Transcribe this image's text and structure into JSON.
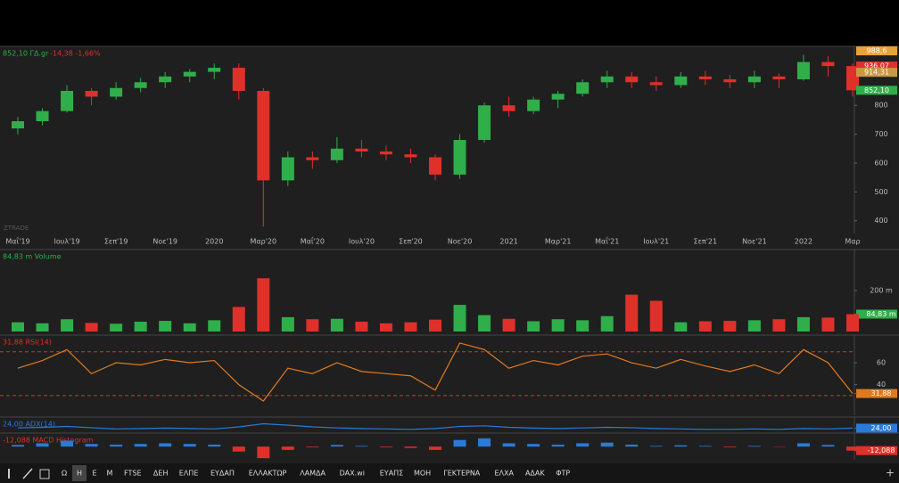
{
  "chart_data": [
    {
      "type": "candlestick",
      "title": "852,10 ΓΔ.gr",
      "subtitle": "-14,38 -1,66%",
      "watermark": "ZTRADE",
      "categories": [
        "Μαΐ'19",
        null,
        "Ιουλ'19",
        null,
        "Σεπ'19",
        null,
        "Νοε'19",
        null,
        "2020",
        null,
        "Μαρ'20",
        null,
        "Μαΐ'20",
        null,
        "Ιουλ'20",
        null,
        "Σεπ'20",
        null,
        "Νοε'20",
        null,
        "2021",
        null,
        "Μαρ'21",
        null,
        "Μαΐ'21",
        null,
        "Ιουλ'21",
        null,
        "Σεπ'21",
        null,
        "Νοε'21",
        null,
        "2022",
        null,
        "Μαρ"
      ],
      "open": [
        720,
        745,
        780,
        850,
        830,
        860,
        880,
        900,
        916,
        930,
        850,
        540,
        620,
        610,
        650,
        640,
        630,
        620,
        560,
        680,
        800,
        780,
        820,
        840,
        880,
        900,
        880,
        870,
        900,
        890,
        880,
        900,
        890,
        950,
        936
      ],
      "high": [
        760,
        790,
        870,
        860,
        880,
        895,
        915,
        925,
        945,
        945,
        860,
        640,
        640,
        690,
        680,
        660,
        650,
        630,
        700,
        810,
        830,
        830,
        850,
        890,
        920,
        915,
        900,
        915,
        920,
        905,
        920,
        910,
        975,
        970,
        945
      ],
      "low": [
        700,
        730,
        775,
        800,
        820,
        845,
        860,
        880,
        890,
        820,
        380,
        520,
        580,
        600,
        620,
        610,
        600,
        540,
        545,
        670,
        760,
        770,
        790,
        830,
        860,
        860,
        850,
        860,
        870,
        860,
        860,
        860,
        885,
        900,
        830
      ],
      "close": [
        745,
        780,
        850,
        830,
        860,
        880,
        900,
        916,
        930,
        850,
        540,
        620,
        610,
        650,
        640,
        630,
        620,
        560,
        680,
        800,
        780,
        820,
        840,
        880,
        900,
        880,
        870,
        900,
        890,
        880,
        900,
        890,
        950,
        936,
        852.1
      ],
      "up_color": "#2fae4a",
      "down_color": "#e0302a",
      "ylim": [
        356,
        992
      ],
      "yticks": [
        400,
        500,
        600,
        700,
        800
      ],
      "markers": [
        {
          "value": 988.6,
          "label": "988,6",
          "color": "#e8a33a"
        },
        {
          "value": 936.07,
          "label": "936,07",
          "color": "#e03030"
        },
        {
          "value": 914.31,
          "label": "914,31",
          "color": "#c89a40"
        },
        {
          "value": 852.1,
          "label": "852,10",
          "color": "#2fae4a"
        }
      ]
    },
    {
      "type": "volume",
      "title": "84,83 m Volume",
      "values": [
        45,
        40,
        60,
        42,
        38,
        48,
        52,
        40,
        55,
        120,
        260,
        70,
        60,
        62,
        48,
        40,
        45,
        58,
        130,
        80,
        62,
        50,
        60,
        55,
        75,
        180,
        150,
        45,
        50,
        52,
        55,
        60,
        70,
        68,
        84.83
      ],
      "ylim": [
        0,
        383
      ],
      "yticks": [
        {
          "value": 200,
          "label": "200 m"
        },
        {
          "value": 84.83,
          "label": "84,83 m"
        }
      ]
    },
    {
      "type": "line",
      "title": "31,88 RSI(14)",
      "color": "#e07a20",
      "values": [
        55,
        62,
        72,
        50,
        60,
        58,
        63,
        60,
        62,
        40,
        25,
        55,
        50,
        60,
        52,
        50,
        48,
        35,
        78,
        72,
        55,
        62,
        58,
        66,
        68,
        60,
        55,
        63,
        57,
        52,
        58,
        50,
        72,
        60,
        31.88
      ],
      "levels": [
        30,
        70
      ],
      "ylim": [
        12,
        82
      ],
      "yticks": [
        40,
        60,
        {
          "value": 31.88,
          "label": "31,88"
        }
      ]
    },
    {
      "type": "line",
      "title": "24,00 ADX(14)",
      "color": "#2a7ad8",
      "values": [
        25,
        28,
        32,
        26,
        20,
        22,
        24,
        22,
        20,
        30,
        45,
        38,
        30,
        25,
        22,
        20,
        18,
        22,
        32,
        35,
        28,
        24,
        22,
        25,
        28,
        26,
        22,
        20,
        18,
        18,
        20,
        18,
        22,
        20,
        24
      ],
      "ylim": [
        0,
        60
      ],
      "yticks": [
        {
          "value": 24,
          "label": "24,00"
        }
      ]
    },
    {
      "type": "histogram",
      "title": "-12,088 MACD Histogram",
      "up_color": "#2a7ad8",
      "down_color": "#e0302a",
      "values": [
        5,
        10,
        18,
        8,
        6,
        8,
        10,
        8,
        6,
        -15,
        -35,
        -10,
        -2,
        5,
        2,
        -2,
        -4,
        -10,
        20,
        25,
        10,
        8,
        6,
        10,
        12,
        6,
        2,
        4,
        2,
        -2,
        2,
        -1,
        10,
        5,
        -12.088
      ],
      "ylim": [
        -40,
        30
      ],
      "yticks": [
        {
          "value": -12.088,
          "label": "-12,088"
        }
      ]
    }
  ],
  "toolbar": {
    "items": [
      "Ω",
      "H",
      "E",
      "M",
      "FTSE",
      "ΔΕΗ",
      "ΕΛΠΕ",
      "ΕΥΔΑΠ",
      "ΕΛΛΑΚΤΩΡ",
      "ΛΑΜΔΑ",
      "DAX.wi",
      "ΕΥΑΠΣ",
      "ΜΟΗ",
      "ΓΕΚΤΕΡΝΑ",
      "ΕΛΧΑ",
      "ΑΔΑΚ",
      "ΦΤΡ"
    ]
  }
}
